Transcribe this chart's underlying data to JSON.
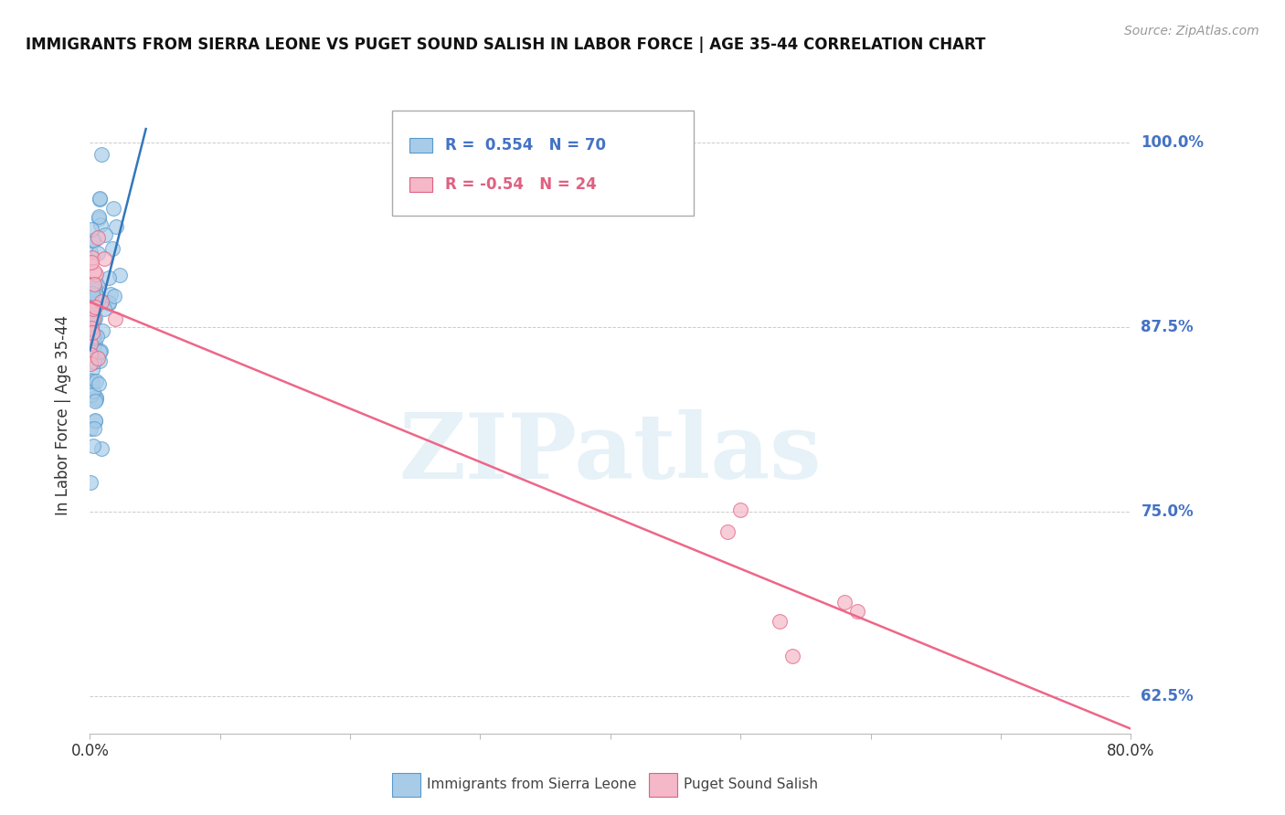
{
  "title": "IMMIGRANTS FROM SIERRA LEONE VS PUGET SOUND SALISH IN LABOR FORCE | AGE 35-44 CORRELATION CHART",
  "source": "Source: ZipAtlas.com",
  "ylabel": "In Labor Force | Age 35-44",
  "xlim": [
    0.0,
    0.8
  ],
  "ylim": [
    0.6,
    1.03
  ],
  "yticks": [
    0.625,
    0.75,
    0.875,
    1.0
  ],
  "ytick_labels": [
    "62.5%",
    "75.0%",
    "87.5%",
    "100.0%"
  ],
  "blue_R": 0.554,
  "blue_N": 70,
  "pink_R": -0.54,
  "pink_N": 24,
  "legend_label_blue": "Immigrants from Sierra Leone",
  "legend_label_pink": "Puget Sound Salish",
  "watermark": "ZIPatlas",
  "blue_color": "#a8cce8",
  "pink_color": "#f4b8c8",
  "blue_edge_color": "#5599cc",
  "pink_edge_color": "#e06080",
  "blue_line_color": "#3377bb",
  "pink_line_color": "#ee6688",
  "background_color": "#ffffff",
  "grid_color": "#cccccc",
  "title_color": "#111111",
  "source_color": "#999999",
  "ylabel_color": "#333333",
  "tick_label_color": "#333333",
  "right_tick_color": "#4472c4",
  "legend_border_color": "#aaaaaa"
}
